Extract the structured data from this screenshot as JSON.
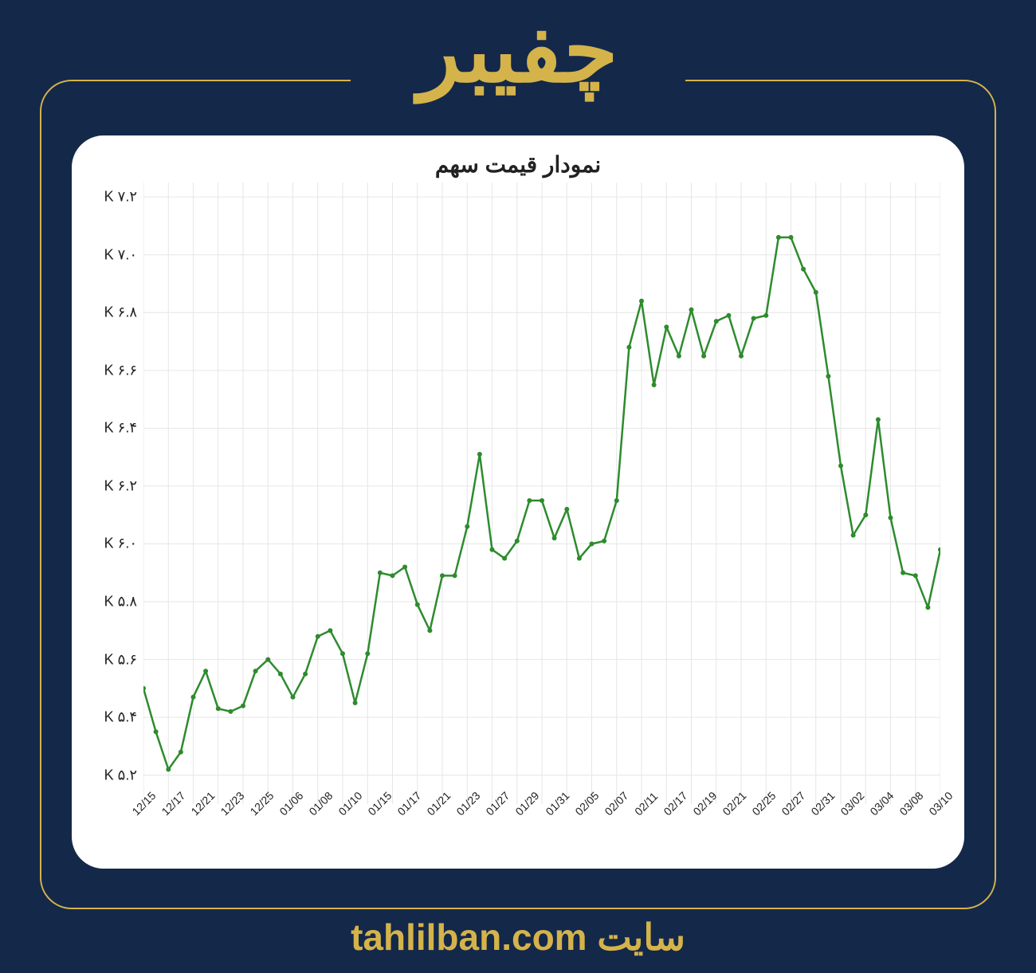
{
  "header": {
    "title": "چفیبر"
  },
  "footer": {
    "text_prefix": "سایت ",
    "url": "tahlilban.com"
  },
  "chart": {
    "type": "line",
    "title": "نمودار قیمت سهم",
    "title_fontsize": 28,
    "background_color": "#ffffff",
    "line_color": "#2e8b2e",
    "line_width": 2.5,
    "marker_color": "#2e8b2e",
    "marker_radius": 3,
    "grid_color": "#e6e6e6",
    "grid_width": 1,
    "axis_color": "#cccccc",
    "ylim": [
      5100,
      7250
    ],
    "y_ticks": [
      5200,
      5400,
      5600,
      5800,
      6000,
      6200,
      6400,
      6600,
      6800,
      7000,
      7200
    ],
    "y_tick_labels": [
      "۵.۲ K",
      "۵.۴ K",
      "۵.۶ K",
      "۵.۸ K",
      "۶.۰ K",
      "۶.۲ K",
      "۶.۴ K",
      "۶.۶ K",
      "۶.۸ K",
      "۷.۰ K",
      "۷.۲ K"
    ],
    "x_tick_indices": [
      0,
      2,
      4,
      6,
      8,
      10,
      12,
      14,
      16,
      18,
      20,
      22,
      24,
      26,
      28,
      30,
      32,
      34,
      36,
      38,
      40,
      42,
      44,
      46,
      48,
      50,
      52,
      54,
      56,
      58
    ],
    "x_tick_labels": [
      "12/15",
      "12/17",
      "12/21",
      "12/23",
      "12/25",
      "01/06",
      "01/08",
      "01/10",
      "01/15",
      "01/17",
      "01/21",
      "01/23",
      "01/27",
      "01/29",
      "01/31",
      "02/05",
      "02/07",
      "02/11",
      "02/17",
      "02/19",
      "02/21",
      "02/25",
      "02/27",
      "02/31",
      "03/02",
      "03/04",
      "03/08",
      "03/10",
      "",
      ""
    ],
    "data_count": 59,
    "values": [
      5500,
      5350,
      5220,
      5280,
      5470,
      5560,
      5430,
      5420,
      5440,
      5560,
      5600,
      5550,
      5470,
      5550,
      5680,
      5700,
      5620,
      5450,
      5620,
      5900,
      5890,
      5920,
      5790,
      5700,
      5890,
      5890,
      6060,
      6310,
      5980,
      5950,
      6010,
      6150,
      6150,
      6020,
      6120,
      5950,
      6000,
      6010,
      6150,
      6680,
      6840,
      6550,
      6750,
      6650,
      6810,
      6650,
      6770,
      6790,
      6650,
      6780,
      6790,
      7060,
      7060,
      6950,
      6870,
      6580,
      6270,
      6030,
      6100
    ],
    "values_tail": [
      6430,
      6090,
      5900,
      5890,
      5780,
      5980
    ],
    "page_background": "#14284a",
    "frame_color": "#d4b34a"
  }
}
